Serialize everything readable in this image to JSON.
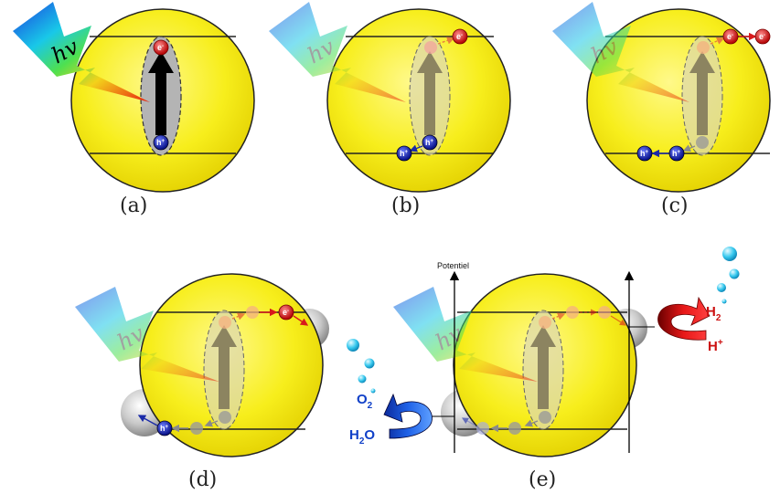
{
  "panels": [
    {
      "id": "a",
      "caption": "(a)"
    },
    {
      "id": "b",
      "caption": "(b)"
    },
    {
      "id": "c",
      "caption": "(c)"
    },
    {
      "id": "d",
      "caption": "(d)"
    },
    {
      "id": "e",
      "caption": "(e)"
    }
  ],
  "labels": {
    "photon": "hv",
    "electron": "e",
    "electron_sup": "-",
    "hole": "h",
    "hole_sup": "+",
    "potential_axis": "Potentiel"
  },
  "reactions": {
    "reduction_product": "H",
    "reduction_product_sub": "2",
    "reduction_reactant": "H",
    "reduction_reactant_sup": "+",
    "oxidation_product": "O",
    "oxidation_product_sub": "2",
    "oxidation_reactant": "H",
    "oxidation_reactant_sub": "2",
    "oxidation_reactant_tail": "O"
  },
  "colors": {
    "particle": "#f7ee1c",
    "electron": "#d8191c",
    "hole": "#1a2aa8",
    "reduction_arrow": "#cc1010",
    "oxidation_arrow": "#1040c8",
    "bubble": "#36c8ee"
  }
}
